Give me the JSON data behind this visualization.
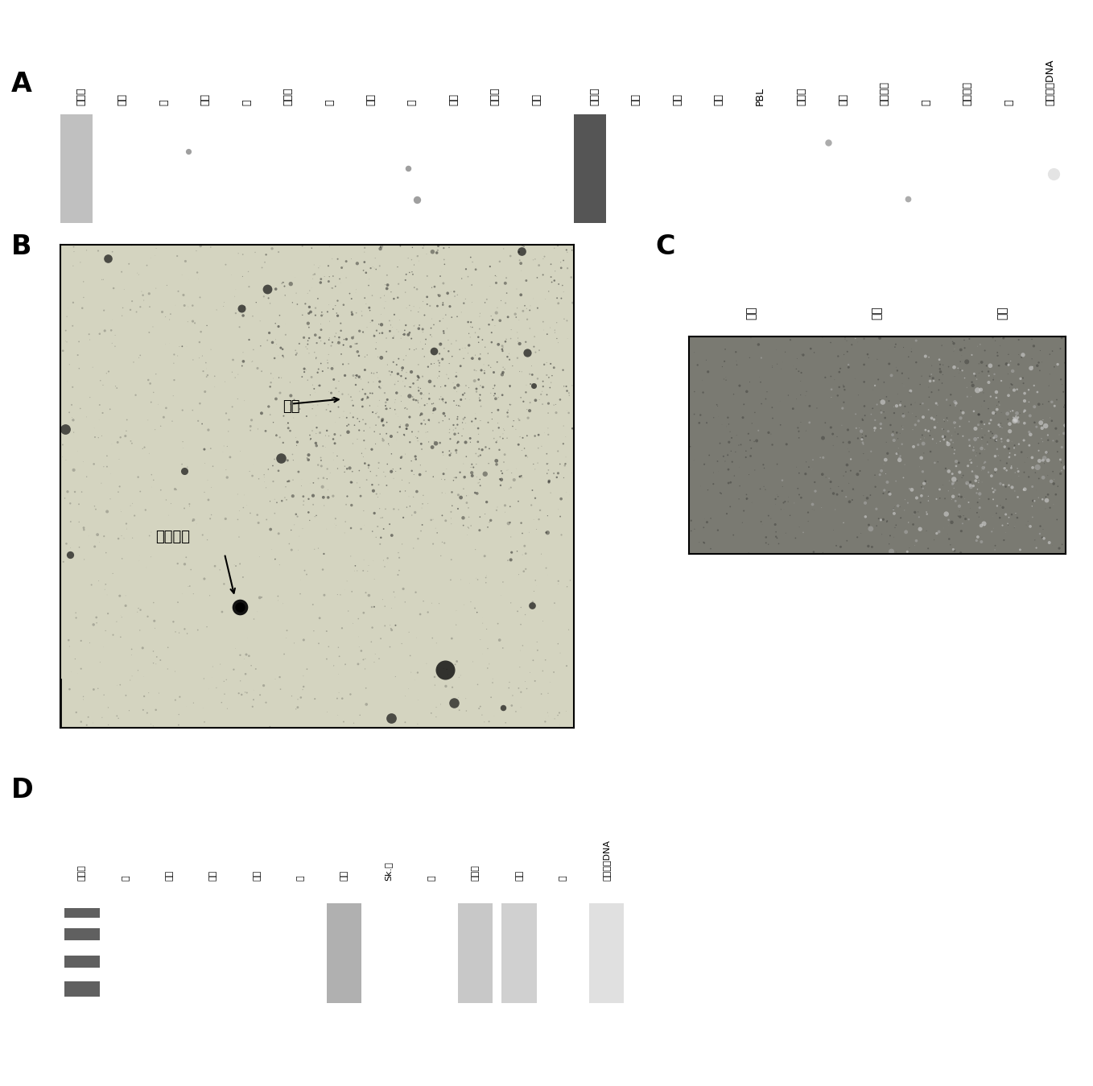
{
  "panel_A": {
    "label": "A",
    "strip1_labels": [
      "标记物",
      "心脏",
      "脑",
      "胎盘",
      "肺",
      "骨骼肌",
      "肾",
      "胰腺",
      "脾",
      "胸腺",
      "前列腺",
      "睾丸"
    ],
    "strip2_labels": [
      "标记物",
      "卵巢",
      "小肠",
      "结肠",
      "PBL",
      "唾液腺",
      "大肠",
      "脑古皮质",
      "出",
      "脂肪细胞",
      "水",
      "染色体组DNA"
    ],
    "bg_color": "#080808"
  },
  "panel_B": {
    "label": "B",
    "annotation1_text": "胰腺",
    "annotation2_text": "胎儿肝脏",
    "bg_color": "#c8c8b8"
  },
  "panel_C": {
    "label": "C",
    "labels": [
      "肾脏",
      "肝脏",
      "胰岛"
    ],
    "bg_color": "#909090"
  },
  "panel_D": {
    "label": "D",
    "labels": [
      "标记物",
      "脑",
      "心脏",
      "肾脏",
      "肝脏",
      "肺",
      "胰腺",
      "Sk.肌",
      "脾",
      "下丘脑",
      "胰岛",
      "水",
      "染色体组DNA"
    ],
    "bg_color": "#080808"
  },
  "figure_bg": "#ffffff",
  "text_color": "#000000",
  "font_size_label": 24,
  "font_size_tick": 9
}
